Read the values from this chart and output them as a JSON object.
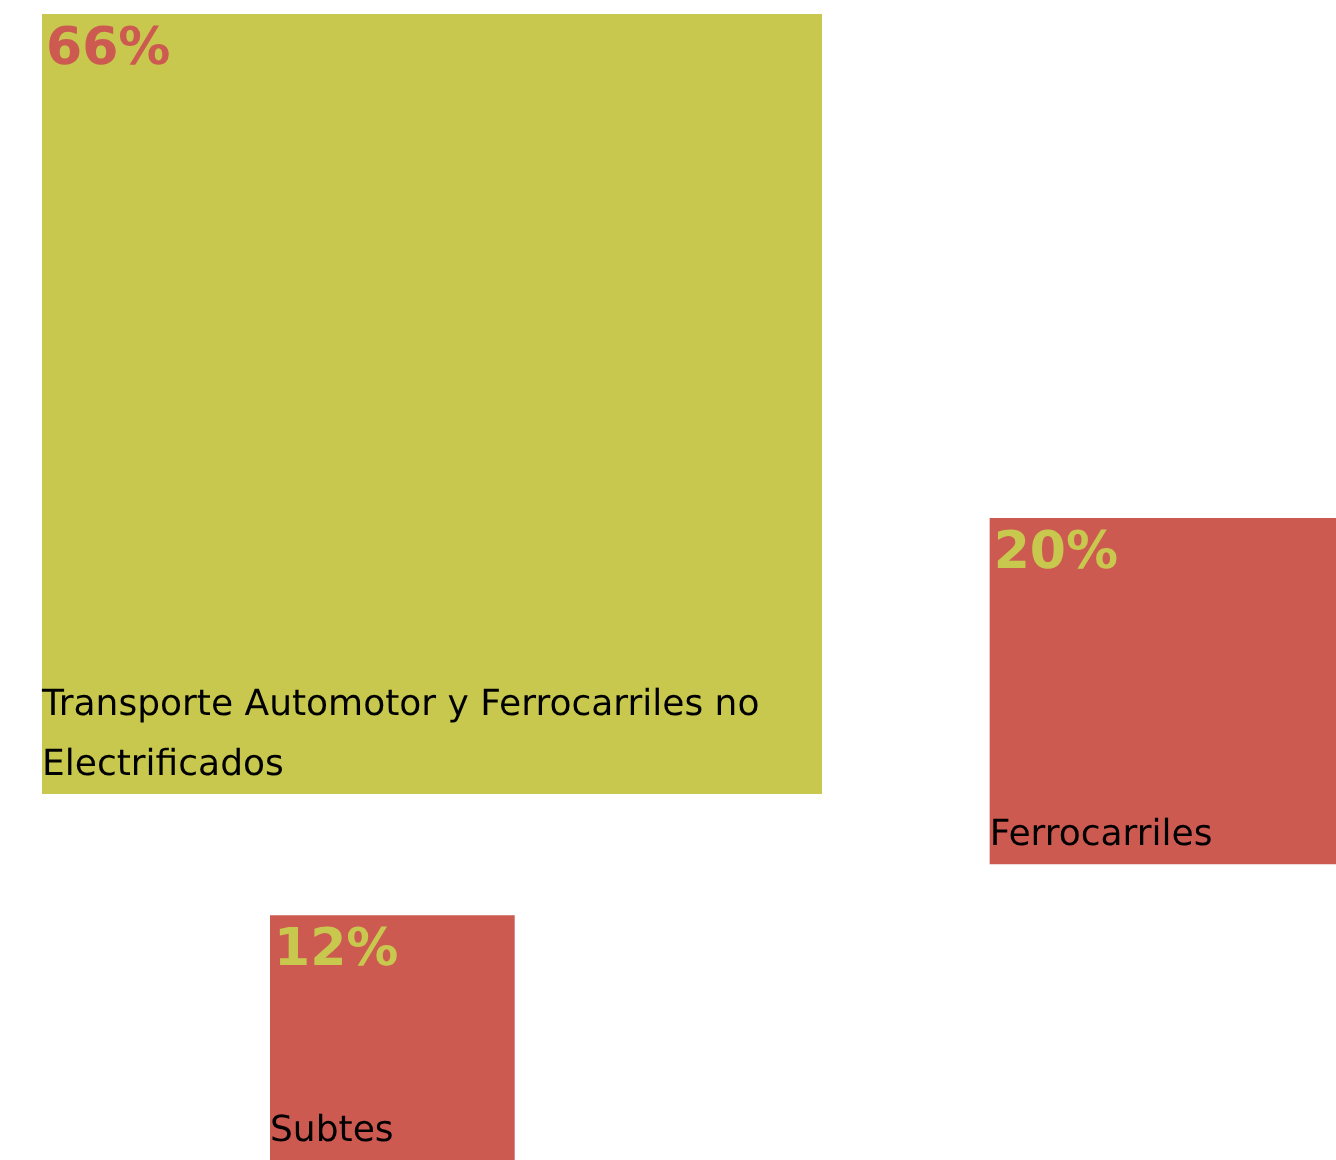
{
  "chart_data": {
    "type": "other",
    "categories": [
      "Transporte Automotor y Ferrocarriles no Electrificados",
      "Ferrocarriles",
      "Subtes"
    ],
    "values": [
      66,
      20,
      12
    ],
    "value_labels": [
      "66%",
      "20%",
      "12%"
    ],
    "colors": [
      "#c8c84e",
      "#cd5a51",
      "#cd5a51"
    ]
  }
}
